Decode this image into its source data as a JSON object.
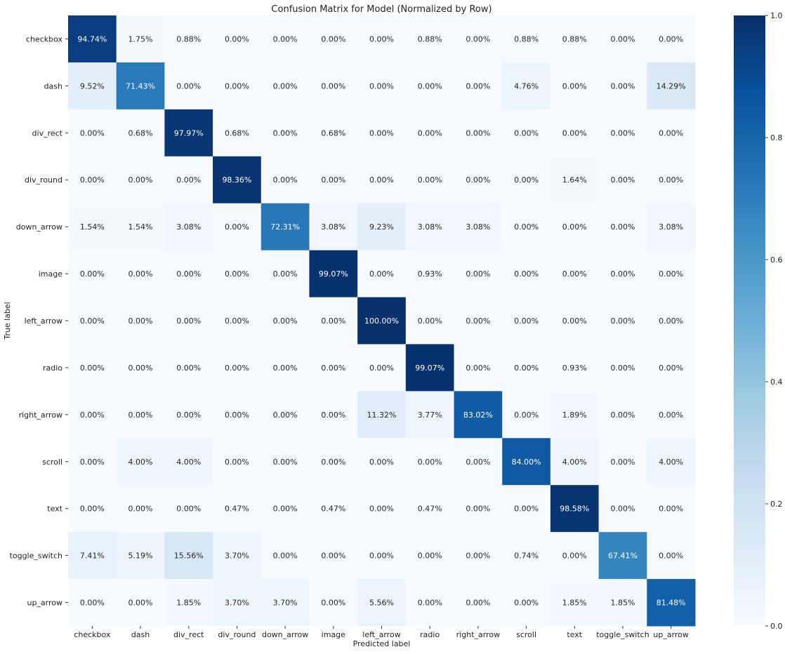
{
  "chart_data": {
    "type": "heatmap",
    "title": "Confusion Matrix for Model (Normalized by Row)",
    "xlabel": "Predicted label",
    "ylabel": "True label",
    "x_categories": [
      "checkbox",
      "dash",
      "div_rect",
      "div_round",
      "down_arrow",
      "image",
      "left_arrow",
      "radio",
      "right_arrow",
      "scroll",
      "text",
      "toggle_switch",
      "up_arrow"
    ],
    "y_categories": [
      "checkbox",
      "dash",
      "div_rect",
      "div_round",
      "down_arrow",
      "image",
      "left_arrow",
      "radio",
      "right_arrow",
      "scroll",
      "text",
      "toggle_switch",
      "up_arrow"
    ],
    "values": [
      [
        94.74,
        1.75,
        0.88,
        0.0,
        0.0,
        0.0,
        0.0,
        0.88,
        0.0,
        0.88,
        0.88,
        0.0,
        0.0
      ],
      [
        9.52,
        71.43,
        0.0,
        0.0,
        0.0,
        0.0,
        0.0,
        0.0,
        0.0,
        4.76,
        0.0,
        0.0,
        14.29
      ],
      [
        0.0,
        0.68,
        97.97,
        0.68,
        0.0,
        0.68,
        0.0,
        0.0,
        0.0,
        0.0,
        0.0,
        0.0,
        0.0
      ],
      [
        0.0,
        0.0,
        0.0,
        98.36,
        0.0,
        0.0,
        0.0,
        0.0,
        0.0,
        0.0,
        1.64,
        0.0,
        0.0
      ],
      [
        1.54,
        1.54,
        3.08,
        0.0,
        72.31,
        3.08,
        9.23,
        3.08,
        3.08,
        0.0,
        0.0,
        0.0,
        3.08
      ],
      [
        0.0,
        0.0,
        0.0,
        0.0,
        0.0,
        99.07,
        0.0,
        0.93,
        0.0,
        0.0,
        0.0,
        0.0,
        0.0
      ],
      [
        0.0,
        0.0,
        0.0,
        0.0,
        0.0,
        0.0,
        100.0,
        0.0,
        0.0,
        0.0,
        0.0,
        0.0,
        0.0
      ],
      [
        0.0,
        0.0,
        0.0,
        0.0,
        0.0,
        0.0,
        0.0,
        99.07,
        0.0,
        0.0,
        0.93,
        0.0,
        0.0
      ],
      [
        0.0,
        0.0,
        0.0,
        0.0,
        0.0,
        0.0,
        11.32,
        3.77,
        83.02,
        0.0,
        1.89,
        0.0,
        0.0
      ],
      [
        0.0,
        4.0,
        4.0,
        0.0,
        0.0,
        0.0,
        0.0,
        0.0,
        0.0,
        84.0,
        4.0,
        0.0,
        4.0
      ],
      [
        0.0,
        0.0,
        0.0,
        0.47,
        0.0,
        0.47,
        0.0,
        0.47,
        0.0,
        0.0,
        98.58,
        0.0,
        0.0
      ],
      [
        7.41,
        5.19,
        15.56,
        3.7,
        0.0,
        0.0,
        0.0,
        0.0,
        0.0,
        0.74,
        0.0,
        67.41,
        0.0
      ],
      [
        0.0,
        0.0,
        1.85,
        3.7,
        3.7,
        0.0,
        5.56,
        0.0,
        0.0,
        0.0,
        1.85,
        1.85,
        81.48
      ]
    ],
    "value_format": "percent_2dp",
    "colormap": "Blues",
    "colorbar": {
      "range": [
        0.0,
        1.0
      ],
      "ticks": [
        0.0,
        0.2,
        0.4,
        0.6,
        0.8,
        1.0
      ],
      "tick_labels": [
        "0.0",
        "0.2",
        "0.4",
        "0.6",
        "0.8",
        "1.0"
      ]
    },
    "grid": false,
    "colors": {
      "low": "#f7fbff",
      "high": "#08306b",
      "text_dark": "#262626",
      "text_light": "#ffffff"
    }
  }
}
